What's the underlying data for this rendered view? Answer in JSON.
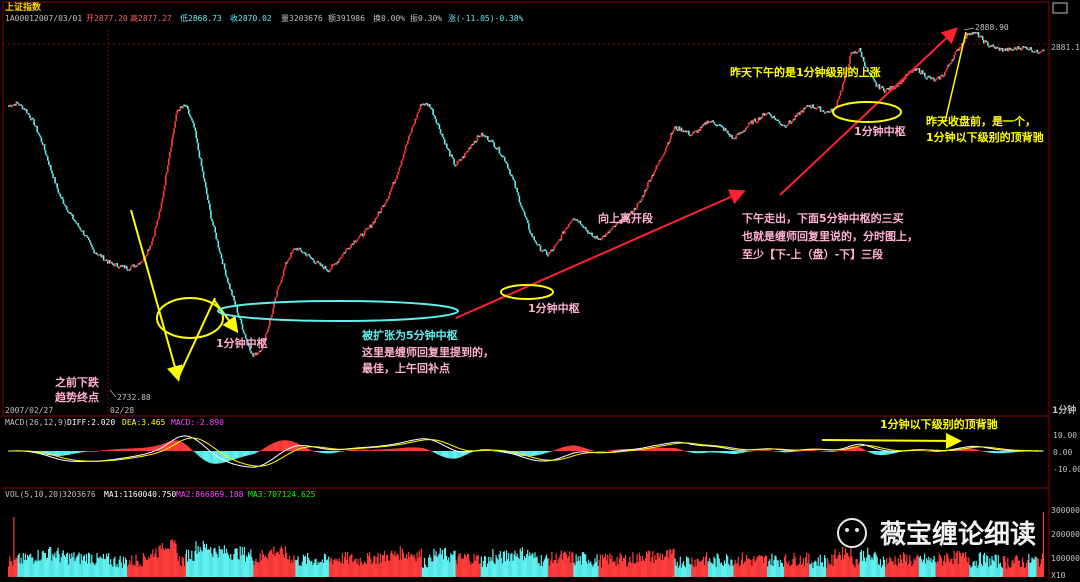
{
  "header": {
    "title": "上证指数",
    "code": "1A0001",
    "date": "2007/03/01",
    "open": "开2877.20",
    "high": "高2877.27",
    "low": "低2868.73",
    "close": "收2870.02",
    "volume": "量3203676",
    "amount": "额391986",
    "turnover": "换0.00%",
    "amplitude": "振0.30%",
    "change": "涨(-11.05)-0.38%"
  },
  "price_labels": {
    "high_mark": "2888.90",
    "low_mark": "2732.88",
    "right_last": "2881.1",
    "date_left": "2007/02/27",
    "date_mid": "02/28",
    "period": "1分钟"
  },
  "annotations": {
    "trend_end": [
      "之前下跌",
      "趋势终点"
    ],
    "zs1_a": "1分钟中枢",
    "expanded": "被扩张为5分钟中枢",
    "buy_point": [
      "这里是缠师回复里提到的，",
      "最佳，上午回补点"
    ],
    "zs1_b": "1分钟中枢",
    "leave": "向上离开段",
    "afternoon": [
      "下午走出，下面5分钟中枢的三买",
      "也就是缠师回复里说的，分时图上，",
      "至少【下-上（盘）-下】三段"
    ],
    "zs1_c": "1分钟中枢",
    "rise": "昨天下午的是1分钟级别的上涨",
    "close_note": [
      "昨天收盘前，是一个，",
      "1分钟以下级别的顶背驰"
    ],
    "macd_note": "1分钟以下级别的顶背驰"
  },
  "macd": {
    "label": "MACD(26,12,9)",
    "diff": "DIFF:2.020",
    "dea": "DEA:3.465",
    "macd": "MACD:-2.890",
    "ticks": [
      "10.00",
      "0.00",
      "-10.00"
    ]
  },
  "volume": {
    "label": "VOL(5,10,20)",
    "vol": "3203676",
    "ma1": "MA1:1160040.750",
    "ma2": "MA2:866869.188",
    "ma3": "MA3:707124.625",
    "ticks": [
      "300000",
      "200000",
      "100000"
    ],
    "corner": "X10"
  },
  "watermark": "薇宝缠论细读",
  "colors": {
    "up": "#ff3c3c",
    "down": "#5ff0f0",
    "diff": "#ffffff",
    "dea": "#ffff00",
    "annot": "#ffb0d0",
    "frame": "#8b0000"
  },
  "chart_data": {
    "type": "line",
    "title": "上证指数",
    "series": [
      {
        "values": [
          2855,
          2856,
          2853,
          2847,
          2838,
          2826,
          2815,
          2808,
          2802,
          2797,
          2790,
          2787,
          2784,
          2783,
          2782,
          2783,
          2786,
          2794,
          2808,
          2832,
          2853,
          2855,
          2845,
          2825,
          2805,
          2790,
          2776,
          2764,
          2752,
          2742,
          2746,
          2758,
          2773,
          2785,
          2791,
          2789,
          2786,
          2783,
          2781,
          2785,
          2790,
          2794,
          2797,
          2801,
          2807,
          2814,
          2823,
          2835,
          2846,
          2856,
          2855,
          2846,
          2836,
          2828,
          2832,
          2838,
          2842,
          2840,
          2836,
          2830,
          2820,
          2808,
          2797,
          2791,
          2788,
          2792,
          2799,
          2805,
          2802,
          2797,
          2795,
          2797,
          2801,
          2804,
          2807,
          2812,
          2821,
          2828,
          2836,
          2845,
          2844,
          2842,
          2844,
          2848,
          2847,
          2844,
          2840,
          2843,
          2847,
          2849,
          2852,
          2849,
          2846,
          2848,
          2852,
          2855,
          2854,
          2852,
          2853,
          2864,
          2878,
          2880,
          2870,
          2864,
          2862,
          2863,
          2866,
          2870,
          2871,
          2868,
          2866,
          2869,
          2876,
          2882,
          2888,
          2887,
          2883,
          2881,
          2880,
          2880,
          2881,
          2881,
          2879,
          2881
        ]
      }
    ]
  }
}
